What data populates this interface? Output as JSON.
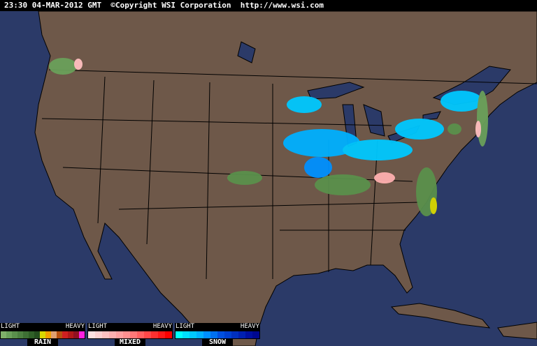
{
  "header": {
    "timestamp": "23:30 04-MAR-2012 GMT",
    "copyright": "©Copyright WSI Corporation",
    "url": "http://www.wsi.com"
  },
  "colors": {
    "land": "#6e5849",
    "water": "#2b3a68",
    "border": "#000000"
  },
  "legend": [
    {
      "name": "RAIN",
      "light": "LIGHT",
      "heavy": "HEAVY",
      "colors": [
        "#7fb06a",
        "#6aa05a",
        "#5a904c",
        "#4c8040",
        "#3e7034",
        "#306028",
        "#244e1e",
        "#d8d800",
        "#f0a000",
        "#e0a070",
        "#b85010",
        "#d02020",
        "#b01818",
        "#901020",
        "#ff20e0"
      ]
    },
    {
      "name": "MIXED",
      "light": "LIGHT",
      "heavy": "HEAVY",
      "colors": [
        "#ffe0e0",
        "#ffd0d0",
        "#ffc0c0",
        "#ffb0b0",
        "#ffa0a0",
        "#ff9090",
        "#ff7878",
        "#ff6060",
        "#ff4848",
        "#ff3030",
        "#ff1818",
        "#ff0000"
      ]
    },
    {
      "name": "SNOW",
      "light": "LIGHT",
      "heavy": "HEAVY",
      "colors": [
        "#00ffff",
        "#00e0ff",
        "#00c8ff",
        "#00b0ff",
        "#0090ff",
        "#0070f0",
        "#0050e0",
        "#0040d0",
        "#0030c0",
        "#0020b0",
        "#0010a0",
        "#000890"
      ]
    }
  ]
}
